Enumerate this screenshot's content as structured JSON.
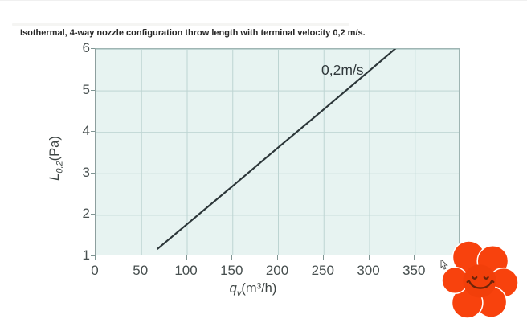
{
  "page": {
    "title": "Isothermal, 4-way nozzle configuration throw length with terminal velocity 0,2 m/s."
  },
  "chart_data": {
    "type": "line",
    "title": "Isothermal, 4-way nozzle configuration throw length with terminal velocity 0,2 m/s.",
    "xlabel": {
      "main": "q",
      "sub": "v",
      "rest": "(m³/h)"
    },
    "ylabel": {
      "main": "L",
      "sub": "0,2",
      "rest": "(Pa)"
    },
    "xlim": [
      0,
      400
    ],
    "ylim": [
      1,
      6
    ],
    "xticks": [
      "0",
      "50",
      "100",
      "150",
      "200",
      "250",
      "300",
      "350"
    ],
    "yticks": [
      "6",
      "5",
      "4",
      "3",
      "2",
      "1"
    ],
    "grid": true,
    "legend_position": "inline-annotation",
    "series": [
      {
        "name": "0,2m/s",
        "color": "#2c3639",
        "points": [
          [
            68,
            1.18
          ],
          [
            100,
            1.77
          ],
          [
            150,
            2.69
          ],
          [
            200,
            3.62
          ],
          [
            250,
            4.54
          ],
          [
            300,
            5.47
          ],
          [
            331,
            6.05
          ]
        ]
      }
    ]
  },
  "icons": {
    "sticker": "flower-smiley-sticker",
    "cursor": "mouse-cursor"
  },
  "colors": {
    "plot_bg": "#e7f3f1",
    "grid": "#bdd4d2",
    "axis": "#8d9f9e",
    "tick_text": "#474f4f",
    "title_text": "#262626",
    "line": "#2c3639",
    "flower_petal": "#f8420d",
    "flower_center": "#f23f0a",
    "flower_face": "#6d2409"
  }
}
